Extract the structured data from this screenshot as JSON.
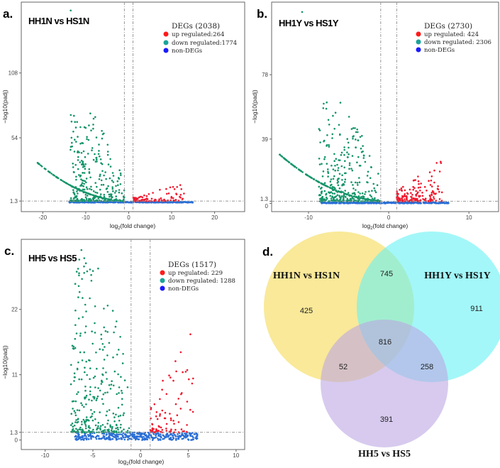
{
  "colors": {
    "up": "#f0192e",
    "down": "#14946a",
    "non": "#2a6fd6",
    "legend_up": "#ff1a1a",
    "legend_down": "#1aa39a",
    "legend_non": "#1a1aff",
    "venn_a": "#f6df6e",
    "venn_b": "#66f2f4",
    "venn_c": "#bda6e3"
  },
  "chart_data": [
    {
      "type": "scatter",
      "panel": "a.",
      "title": "HH1N vs HS1N",
      "xlabel_base": "log",
      "xlabel_sub": "2",
      "xlabel_rest": "(fold change)",
      "ylabel": "−log10(padj)",
      "xticks": [
        "-20",
        "-10",
        "0",
        "10",
        "20"
      ],
      "xtick_values": [
        -20,
        -10,
        0,
        10,
        20
      ],
      "yticks": [
        "1.3",
        "54",
        "108"
      ],
      "ytick_values": [
        1.3,
        54,
        108
      ],
      "xlim": [
        -25,
        27
      ],
      "ylim": [
        -7.5,
        167
      ],
      "thresholds": {
        "fold_change": [
          -1,
          1
        ],
        "padj": 1.3
      },
      "legend": {
        "title": "DEGs (2038)",
        "items": [
          "up regulated:264",
          "down regulated:1774",
          "non-DEGs"
        ]
      },
      "counts": {
        "up": 264,
        "down": 1774
      },
      "shape": {
        "down_xmin": -23,
        "up_xmax": 25,
        "down_ymax": 75,
        "up_ymax": 12,
        "outlier": [
          -13.5,
          160
        ]
      }
    },
    {
      "type": "scatter",
      "panel": "b.",
      "title": "HH1Y vs HS1Y",
      "xlabel_base": "log",
      "xlabel_sub": "2",
      "xlabel_rest": "(fold change)",
      "ylabel": "−log10(padj)",
      "xticks": [
        "-10",
        "0",
        "10"
      ],
      "xtick_values": [
        -10,
        0,
        10
      ],
      "yticks": [
        "0",
        "1.3",
        "39",
        "78"
      ],
      "ytick_values": [
        0,
        1.3,
        39,
        78
      ],
      "xlim": [
        -14.6,
        13.7
      ],
      "ylim": [
        -5,
        122
      ],
      "thresholds": {
        "fold_change": [
          -1,
          1
        ],
        "padj": 1.3
      },
      "legend": {
        "title": "DEGs (2730)",
        "items": [
          "up regulated: 424",
          "down regulated: 2306",
          "non-DEGs"
        ]
      },
      "counts": {
        "up": 424,
        "down": 2306
      },
      "shape": {
        "down_xmin": -14,
        "up_xmax": 12.5,
        "down_ymax": 60,
        "up_ymax": 20,
        "outlier": [
          -10.8,
          116
        ]
      }
    },
    {
      "type": "scatter",
      "panel": "c.",
      "title": "HH5 vs HS5",
      "xlabel_base": "log",
      "xlabel_sub": "2",
      "xlabel_rest": "(fold change)",
      "ylabel": "−log10(padj)",
      "xticks": [
        "-10",
        "-5",
        "0",
        "5",
        "10"
      ],
      "xtick_values": [
        -10,
        -5,
        0,
        5,
        10
      ],
      "yticks": [
        "0",
        "1.3",
        "11",
        "22"
      ],
      "ytick_values": [
        0,
        1.3,
        11,
        22
      ],
      "xlim": [
        -12.5,
        10.9
      ],
      "ylim": [
        -1.6,
        33.8
      ],
      "thresholds": {
        "fold_change": [
          -1,
          1
        ],
        "padj": 1.3
      },
      "legend": {
        "title": "DEGs (1517)",
        "items": [
          "up regulated: 229",
          "down regulated: 1288",
          "non-DEGs"
        ]
      },
      "counts": {
        "up": 229,
        "down": 1288
      },
      "shape": {
        "down_xmin": -11.5,
        "up_xmax": 10,
        "down_ymax": 31,
        "up_ymax": 15,
        "outlier": [
          -6.2,
          32
        ]
      }
    },
    {
      "type": "venn",
      "panel": "d.",
      "sets": [
        "HH1N vs HS1N",
        "HH1Y vs HS1Y",
        "HH5 vs HS5"
      ],
      "regions": {
        "a_only": "425",
        "ab": "745",
        "b_only": "911",
        "abc": "816",
        "ac": "52",
        "bc": "258",
        "c_only": "391"
      }
    }
  ]
}
